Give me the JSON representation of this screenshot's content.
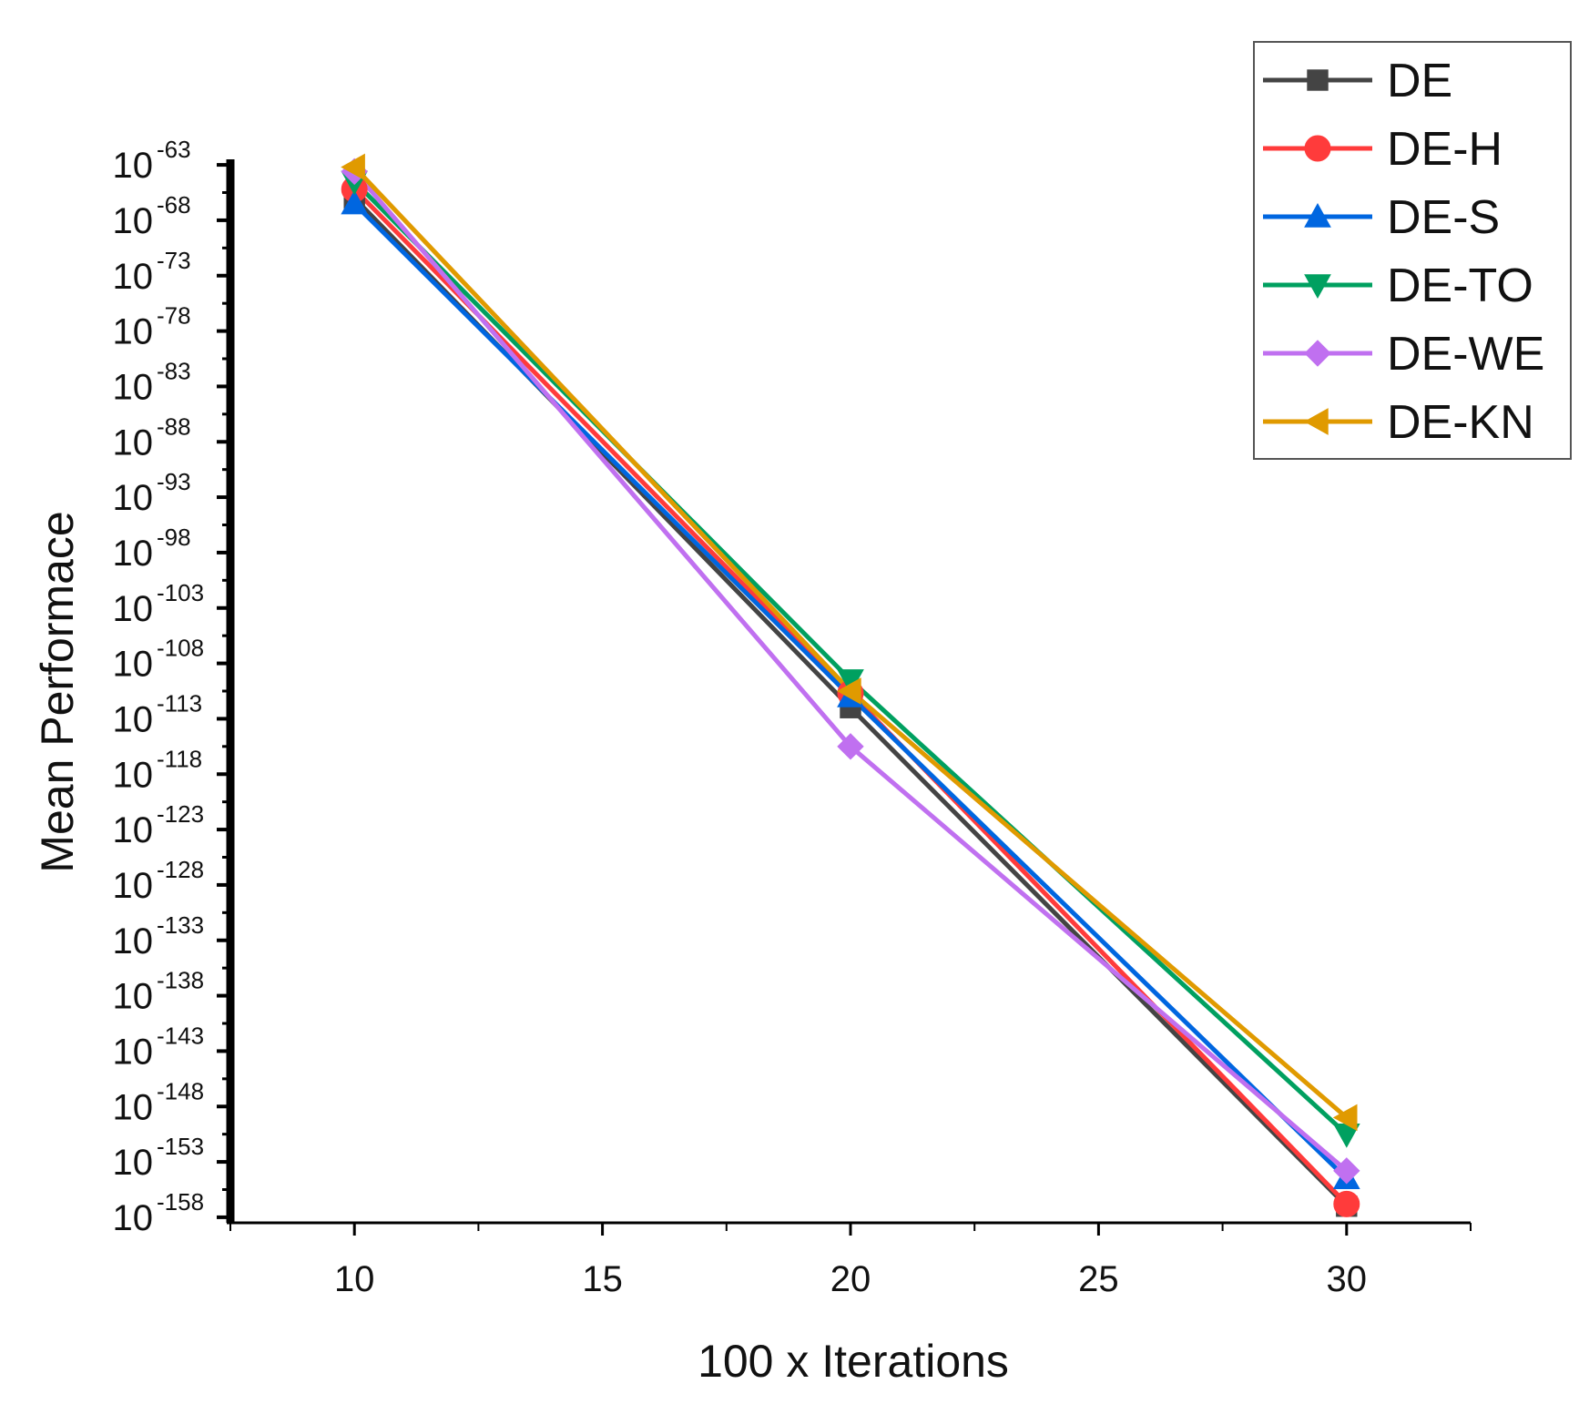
{
  "chart_data": {
    "type": "line",
    "title": "",
    "xlabel": "100 x Iterations",
    "ylabel": "Mean Performace",
    "yscale": "log10",
    "xlim": [
      7.5,
      32.5
    ],
    "ylim_exponent": [
      -158.5,
      -62.5
    ],
    "x_ticks": [
      10,
      15,
      20,
      25,
      30
    ],
    "y_tick_base": "10",
    "y_tick_exponents": [
      -63,
      -68,
      -73,
      -78,
      -83,
      -88,
      -93,
      -98,
      -103,
      -108,
      -113,
      -118,
      -123,
      -128,
      -133,
      -138,
      -143,
      -148,
      -153,
      -158
    ],
    "y_tick_labels": [
      "-63",
      "-68",
      "-73",
      "-78",
      "-83",
      "-88",
      "-93",
      "-98",
      "-103",
      "-108",
      "-113",
      "-118",
      "-123",
      "-128",
      "-133",
      "-138",
      "-143",
      "-148",
      "-153",
      "-158"
    ],
    "x": [
      10,
      20,
      30
    ],
    "legend_position": "top-right",
    "series": [
      {
        "name": "DE",
        "marker": "square",
        "color": "#444444",
        "log10_values": [
          -66.0,
          -112.0,
          -157.0
        ]
      },
      {
        "name": "DE-H",
        "marker": "circle",
        "color": "#ff3b3b",
        "log10_values": [
          -65.2,
          -110.7,
          -156.8
        ]
      },
      {
        "name": "DE-S",
        "marker": "triangle-up",
        "color": "#0066e0",
        "log10_values": [
          -66.5,
          -111.0,
          -154.5
        ]
      },
      {
        "name": "DE-TO",
        "marker": "triangle-down",
        "color": "#00a060",
        "log10_values": [
          -64.5,
          -109.5,
          -150.5
        ]
      },
      {
        "name": "DE-WE",
        "marker": "diamond",
        "color": "#c070f0",
        "log10_values": [
          -63.6,
          -115.5,
          -153.8
        ]
      },
      {
        "name": "DE-KN",
        "marker": "triangle-left",
        "color": "#e09a00",
        "log10_values": [
          -63.2,
          -110.5,
          -149.0
        ]
      }
    ]
  }
}
